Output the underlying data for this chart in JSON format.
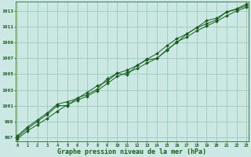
{
  "xlabel": "Graphe pression niveau de la mer (hPa)",
  "bg_color": "#cce8e4",
  "plot_bg_color": "#cce8e4",
  "grid_color": "#99ccbb",
  "line_color": "#1a5e20",
  "marker_color": "#1a5e20",
  "axis_color": "#336633",
  "tick_color": "#1a5e20",
  "label_color": "#1a5e20",
  "xlim": [
    -0.2,
    23.2
  ],
  "ylim": [
    996.5,
    1014.2
  ],
  "xticks": [
    0,
    1,
    2,
    3,
    4,
    5,
    6,
    7,
    8,
    9,
    10,
    11,
    12,
    13,
    14,
    15,
    16,
    17,
    18,
    19,
    20,
    21,
    22,
    23
  ],
  "yticks": [
    997,
    999,
    1001,
    1003,
    1005,
    1007,
    1009,
    1011,
    1013
  ],
  "hours": [
    0,
    1,
    2,
    3,
    4,
    5,
    6,
    7,
    8,
    9,
    10,
    11,
    12,
    13,
    14,
    15,
    16,
    17,
    18,
    19,
    20,
    21,
    22,
    23
  ],
  "series": [
    [
      996.8,
      997.8,
      998.6,
      999.4,
      1000.3,
      1001.1,
      1001.7,
      1002.2,
      1002.9,
      1003.8,
      1004.7,
      1005.2,
      1005.7,
      1006.4,
      1007.0,
      1008.0,
      1009.1,
      1009.7,
      1010.5,
      1011.1,
      1011.7,
      1012.4,
      1013.0,
      1013.5
    ],
    [
      997.2,
      998.3,
      999.2,
      1000.1,
      1001.2,
      1001.5,
      1001.9,
      1002.7,
      1003.5,
      1004.1,
      1005.1,
      1005.5,
      1006.1,
      1006.9,
      1007.6,
      1008.6,
      1009.5,
      1010.1,
      1010.9,
      1011.8,
      1012.1,
      1012.9,
      1013.2,
      1013.7
    ],
    [
      997.0,
      998.1,
      999.0,
      999.9,
      1001.0,
      1001.0,
      1002.0,
      1002.4,
      1003.1,
      1004.4,
      1005.1,
      1004.9,
      1006.1,
      1006.8,
      1007.0,
      1008.1,
      1009.0,
      1010.1,
      1010.9,
      1011.4,
      1011.9,
      1012.9,
      1013.3,
      1013.9
    ]
  ]
}
